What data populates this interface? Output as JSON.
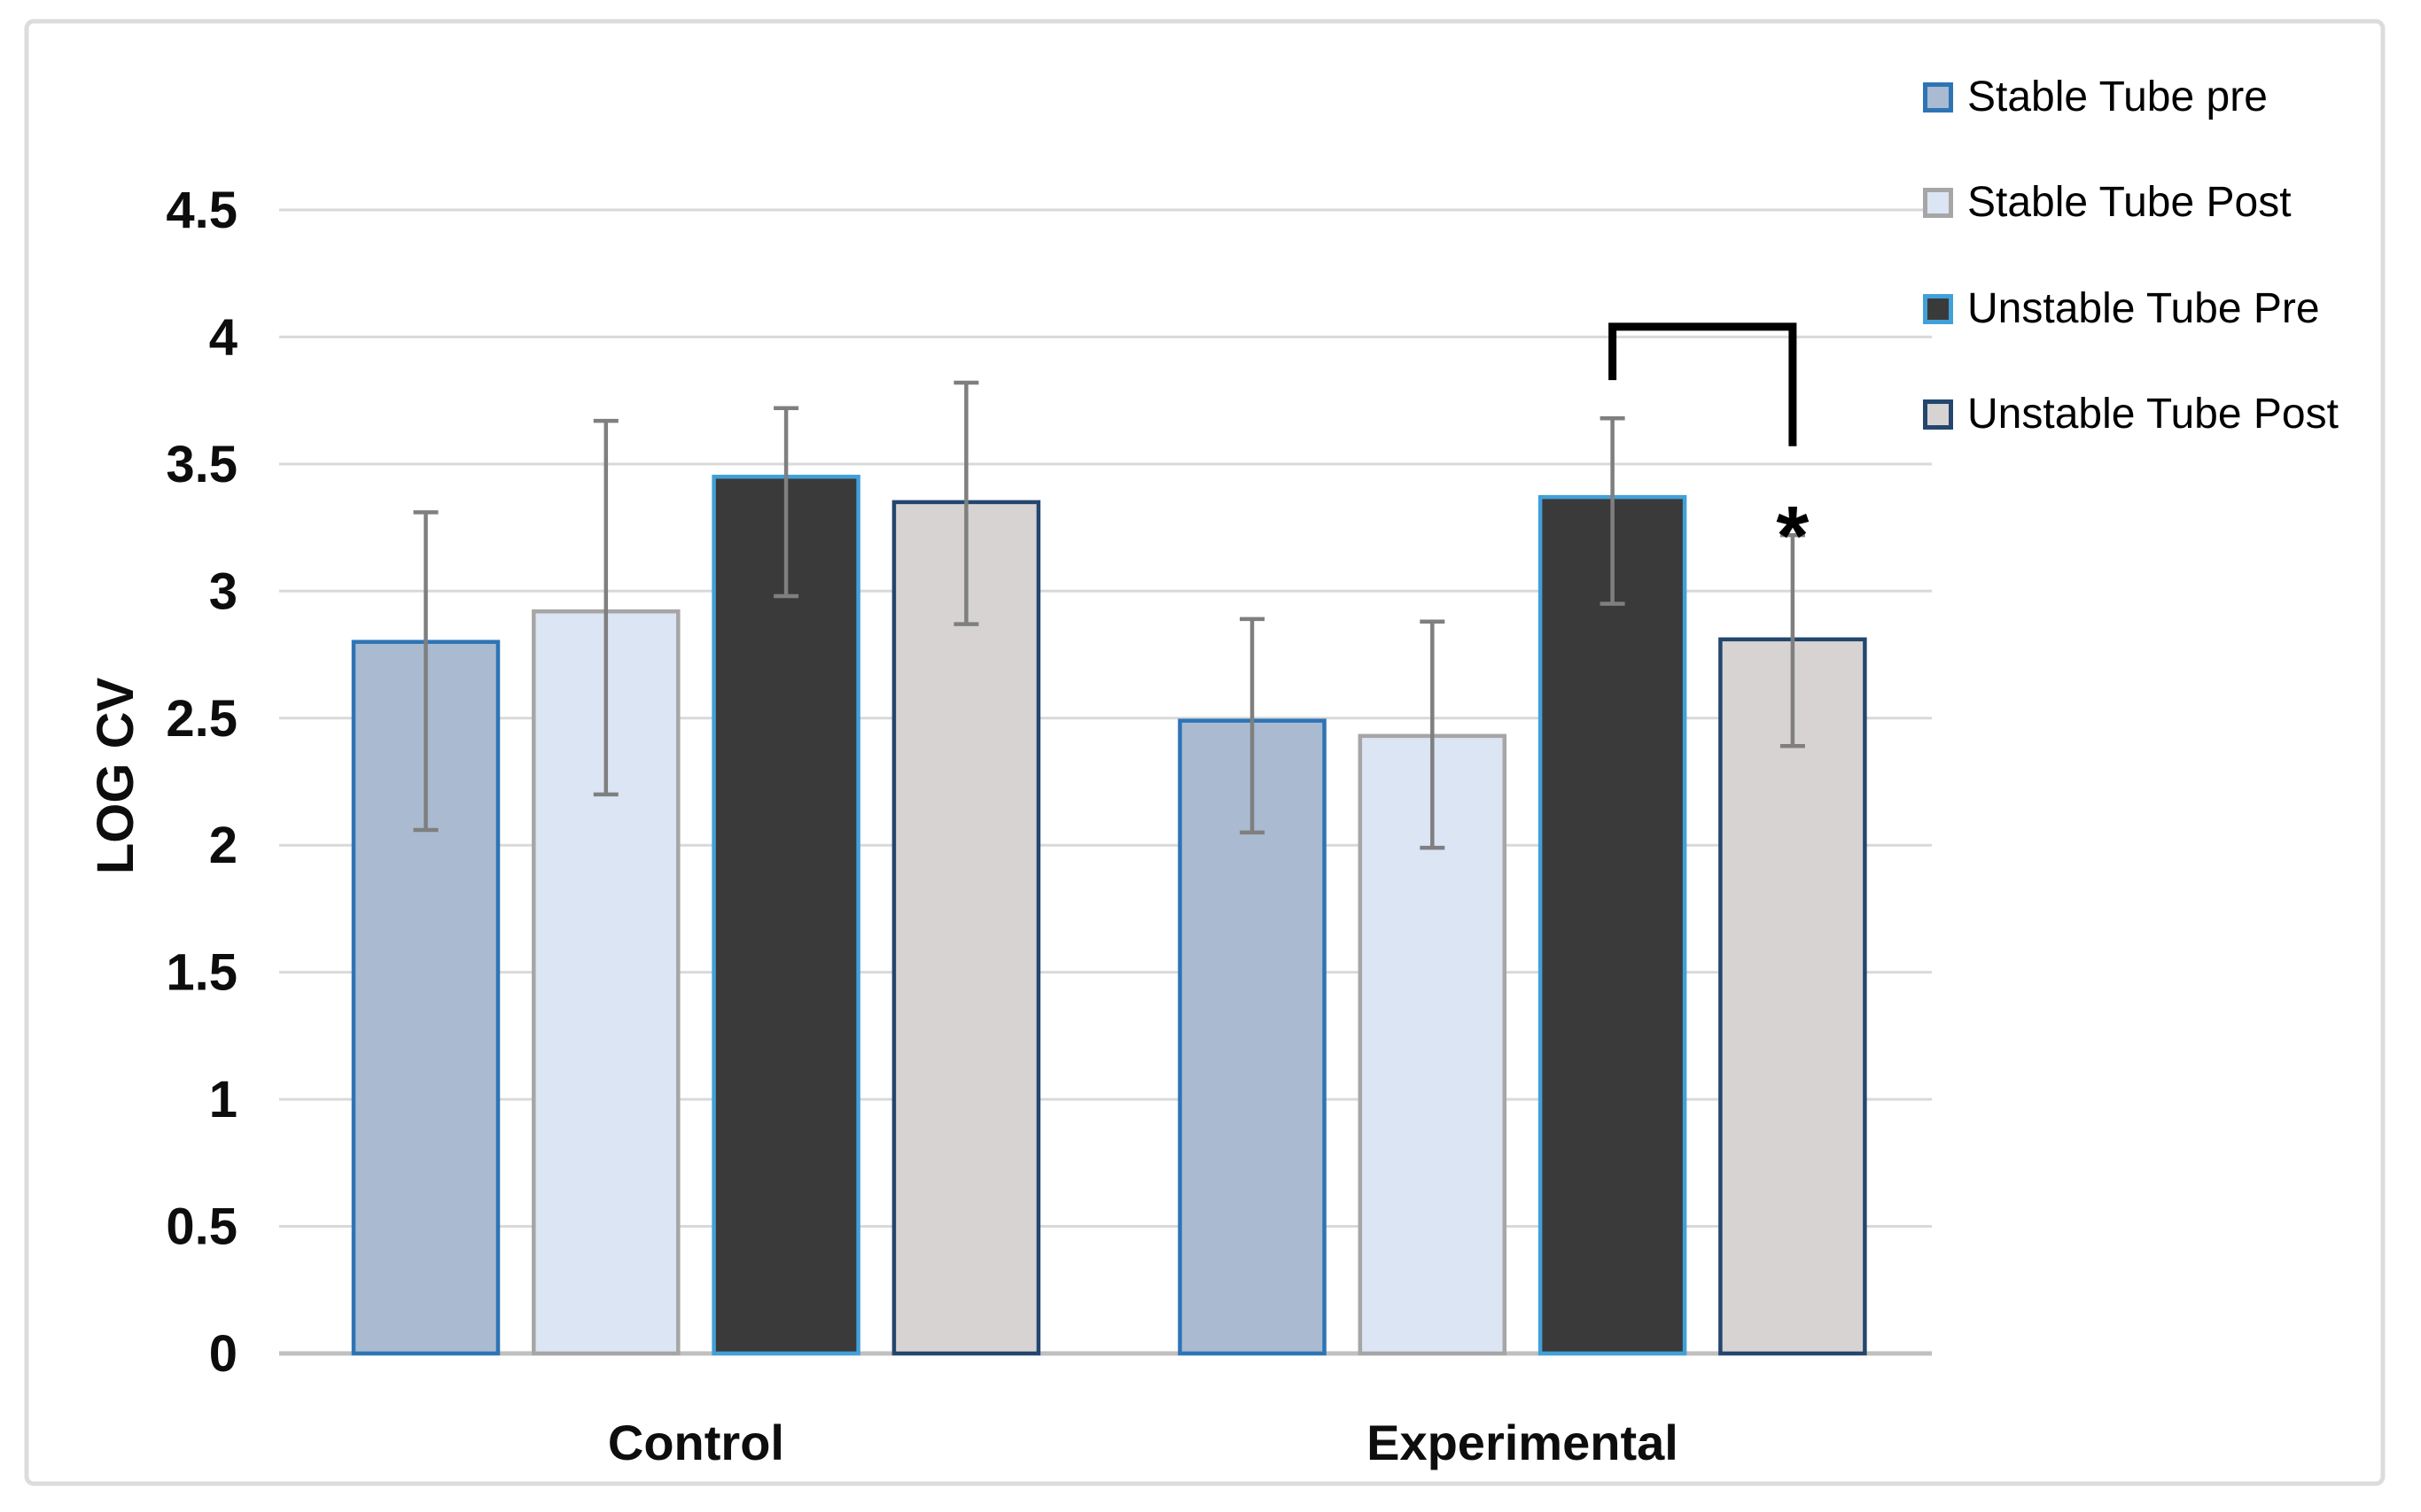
{
  "figure": {
    "background": "#ffffff",
    "frame_color": "#dcdcdc"
  },
  "chart_data": {
    "type": "bar",
    "title": "",
    "xlabel": "",
    "ylabel": "LOG CV",
    "categories": [
      "Control",
      "Experimental"
    ],
    "series": [
      {
        "name": "Stable Tube pre",
        "fill": "#a9bad1",
        "border": "#2e74b5",
        "values": [
          2.8,
          2.49
        ],
        "error_high": [
          3.31,
          2.89
        ],
        "error_low": [
          2.06,
          2.05
        ]
      },
      {
        "name": "Stable Tube Post",
        "fill": "#dbe5f3",
        "border": "#a6a6a6",
        "values": [
          2.92,
          2.43
        ],
        "error_high": [
          3.67,
          2.88
        ],
        "error_low": [
          2.2,
          1.99
        ]
      },
      {
        "name": "Unstable Tube Pre",
        "fill": "#3a3a3a",
        "border": "#42a0d9",
        "values": [
          3.45,
          3.37
        ],
        "error_high": [
          3.72,
          3.68
        ],
        "error_low": [
          2.98,
          2.95
        ]
      },
      {
        "name": "Unstable Tube Post",
        "fill": "#d7d3d3",
        "border": "#24466e",
        "values": [
          3.35,
          2.81
        ],
        "error_high": [
          3.82,
          3.22
        ],
        "error_low": [
          2.87,
          2.39
        ]
      }
    ],
    "ylim": [
      0,
      4.5
    ],
    "ytick_step": 0.5,
    "yticks": [
      "0",
      "0.5",
      "1",
      "1.5",
      "2",
      "2.5",
      "3",
      "3.5",
      "4",
      "4.5"
    ],
    "grid": true,
    "gridline_color": "#d9d9d9",
    "axis_line_color": "#c0c0c0",
    "error_bar_color": "#7f7f7f",
    "legend_position": "right",
    "annotation": {
      "type": "significance-bracket",
      "category": "Experimental",
      "between": [
        "Unstable Tube Pre",
        "Unstable Tube Post"
      ],
      "label": "*",
      "bracket_level": 4.04,
      "left_drop_to": 3.83,
      "right_drop_to": 3.57,
      "asterisk_level": 3.27
    }
  }
}
